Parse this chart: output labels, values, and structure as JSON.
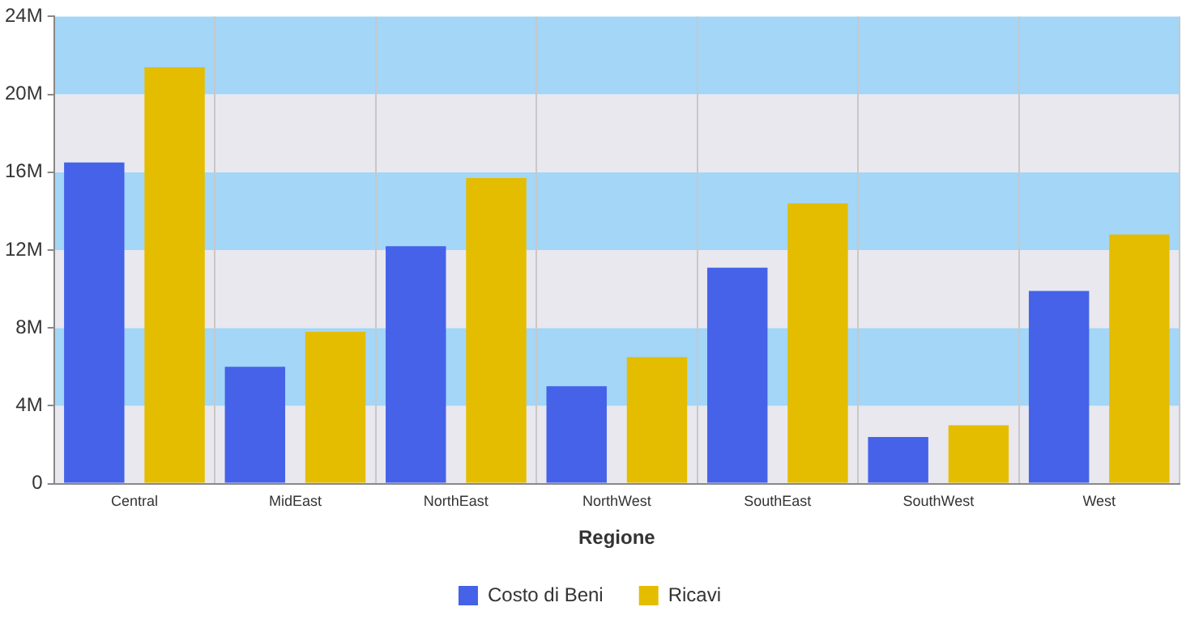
{
  "chart_data": {
    "type": "bar",
    "categories": [
      "Central",
      "MidEast",
      "NorthEast",
      "NorthWest",
      "SouthEast",
      "SouthWest",
      "West"
    ],
    "series": [
      {
        "name": "Costo di Beni",
        "color": "#4562e8",
        "values": [
          16.5,
          6.0,
          12.2,
          5.0,
          11.1,
          2.4,
          9.9
        ]
      },
      {
        "name": "Ricavi",
        "color": "#e4bd00",
        "values": [
          21.4,
          7.8,
          15.7,
          6.5,
          14.4,
          3.0,
          12.8
        ]
      }
    ],
    "xlabel": "Regione",
    "ylim": [
      0,
      24
    ],
    "yticks": [
      0,
      {
        "value": 4,
        "label": "4M"
      },
      {
        "value": 8,
        "label": "8M"
      },
      {
        "value": 12,
        "label": "12M"
      },
      {
        "value": 16,
        "label": "16M"
      },
      {
        "value": 20,
        "label": "20M"
      },
      {
        "value": 24,
        "label": "24M"
      }
    ],
    "grid": true,
    "bands": [
      {
        "axis": "y",
        "from": 0,
        "to": 4,
        "color": "#e9e8ee"
      },
      {
        "axis": "y",
        "from": 4,
        "to": 8,
        "color": "#a3d6f7"
      },
      {
        "axis": "y",
        "from": 8,
        "to": 12,
        "color": "#e9e8ee"
      },
      {
        "axis": "y",
        "from": 12,
        "to": 16,
        "color": "#a3d6f7"
      },
      {
        "axis": "y",
        "from": 16,
        "to": 20,
        "color": "#e9e8ee"
      },
      {
        "axis": "y",
        "from": 20,
        "to": 24,
        "color": "#a3d6f7"
      }
    ],
    "legend": "bottom"
  }
}
